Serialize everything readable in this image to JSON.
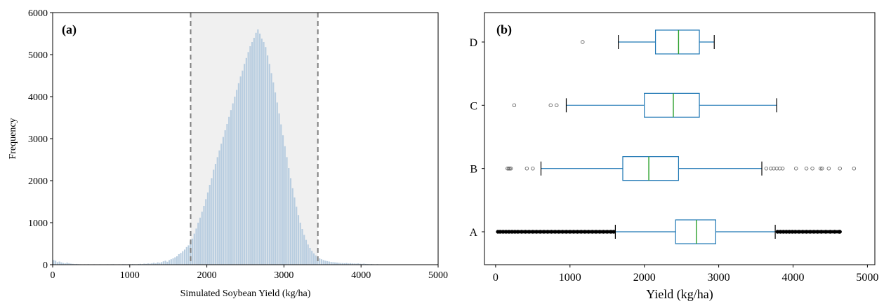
{
  "chart_data": [
    {
      "type": "bar",
      "panel_label": "(a)",
      "title": "",
      "xlabel": "Simulated Soybean Yield (kg/ha)",
      "ylabel": "Frequency",
      "xlim": [
        0,
        5000
      ],
      "ylim": [
        0,
        6000
      ],
      "xticks": [
        "0",
        "1000",
        "2000",
        "3000",
        "4000",
        "5000"
      ],
      "yticks": [
        "0",
        "1000",
        "2000",
        "3000",
        "4000",
        "5000",
        "6000"
      ],
      "bar_color": "#b8cde0",
      "shade_color": "#f0f0f0",
      "threshold_lines": [
        1790,
        3440
      ],
      "threshold_color": "#808080",
      "bin_edges_start": 0,
      "bin_width": 25,
      "values": [
        110,
        95,
        60,
        75,
        55,
        40,
        30,
        50,
        35,
        25,
        20,
        15,
        18,
        12,
        10,
        8,
        10,
        6,
        12,
        8,
        5,
        10,
        6,
        8,
        10,
        5,
        6,
        8,
        10,
        6,
        10,
        12,
        8,
        6,
        10,
        8,
        12,
        10,
        8,
        12,
        10,
        15,
        12,
        10,
        15,
        20,
        15,
        25,
        20,
        30,
        25,
        35,
        45,
        30,
        55,
        45,
        60,
        80,
        95,
        70,
        110,
        130,
        150,
        175,
        200,
        250,
        280,
        320,
        360,
        420,
        460,
        560,
        620,
        740,
        860,
        1000,
        1120,
        1260,
        1400,
        1560,
        1720,
        1900,
        2060,
        2260,
        2400,
        2560,
        2720,
        2880,
        3040,
        3200,
        3350,
        3520,
        3680,
        3840,
        4000,
        4160,
        4320,
        4480,
        4620,
        4780,
        4920,
        5060,
        5200,
        5300,
        5400,
        5520,
        5600,
        5500,
        5380,
        5300,
        5180,
        4980,
        4780,
        4560,
        4340,
        4100,
        3860,
        3600,
        3340,
        3080,
        2820,
        2560,
        2300,
        2060,
        1820,
        1600,
        1380,
        1180,
        1000,
        850,
        710,
        590,
        480,
        400,
        330,
        270,
        220,
        180,
        150,
        130,
        110,
        95,
        85,
        75,
        65,
        60,
        55,
        50,
        45,
        40,
        38,
        35,
        40,
        30,
        35,
        30,
        28,
        25,
        30,
        22,
        20,
        25,
        18,
        15,
        12,
        15,
        10,
        8,
        12,
        6,
        5,
        8,
        4,
        6,
        3,
        5,
        4,
        3,
        2,
        4,
        2,
        3,
        2,
        2,
        1,
        2,
        1,
        1,
        0,
        1,
        0,
        0,
        0,
        0,
        0
      ]
    },
    {
      "type": "boxplot",
      "orientation": "horizontal",
      "panel_label": "(b)",
      "title": "",
      "xlabel": "Yield (kg/ha)",
      "ylabel": "",
      "xlim": [
        -150,
        5100
      ],
      "xticks": [
        "0",
        "1000",
        "2000",
        "3000",
        "4000",
        "5000"
      ],
      "box_color": "#1f77b4",
      "median_color": "#2ca02c",
      "flier_color": "#555555",
      "series": [
        {
          "name": "A",
          "whisker_low": 1610,
          "q1": 2420,
          "median": 2700,
          "q3": 2960,
          "whisker_high": 3760,
          "outliers": [
            30,
            60,
            100,
            140,
            180,
            220,
            260,
            300,
            350,
            400,
            450,
            500,
            550,
            600,
            650,
            700,
            750,
            800,
            850,
            900,
            950,
            1000,
            1050,
            1100,
            1150,
            1200,
            1250,
            1300,
            1350,
            1400,
            1450,
            1500,
            1550,
            1590,
            3790,
            3830,
            3870,
            3910,
            3950,
            3990,
            4030,
            4080,
            4130,
            4180,
            4230,
            4280,
            4330,
            4380,
            4440,
            4500,
            4560,
            4620,
            4630
          ]
        },
        {
          "name": "B",
          "whisker_low": 610,
          "q1": 1710,
          "median": 2060,
          "q3": 2460,
          "whisker_high": 3580,
          "outliers": [
            160,
            175,
            190,
            205,
            420,
            500,
            3640,
            3700,
            3740,
            3780,
            3820,
            3860,
            4040,
            4180,
            4260,
            4370,
            4390,
            4480,
            4630,
            4820
          ]
        },
        {
          "name": "C",
          "whisker_low": 950,
          "q1": 2000,
          "median": 2390,
          "q3": 2740,
          "whisker_high": 3780,
          "outliers": [
            250,
            740,
            820
          ]
        },
        {
          "name": "D",
          "whisker_low": 1650,
          "q1": 2150,
          "median": 2460,
          "q3": 2740,
          "whisker_high": 2940,
          "outliers": [
            1170
          ]
        }
      ]
    }
  ]
}
